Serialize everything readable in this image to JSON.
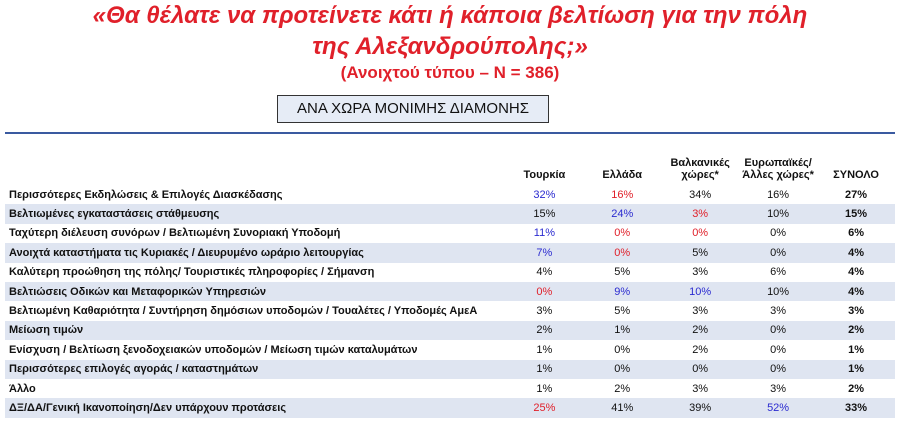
{
  "title": {
    "line1": "«Θα θέλατε να προτείνετε κάτι ή κάποια βελτίωση για την πόλη",
    "line2": "της Αλεξανδρούπολης;»",
    "subtitle": "(Ανοιχτού τύπου – Ν = 386)"
  },
  "section_label": "ΑΝΑ ΧΩΡΑ ΜΟΝΙΜΗΣ ΔΙΑΜΟΝΗΣ",
  "table": {
    "headers": [
      "Τουρκία",
      "Ελλάδα",
      "Βαλκανικές χώρες*",
      "Ευρωπαϊκές/ Άλλες χώρες*",
      "ΣΥΝΟΛΟ"
    ],
    "rows": [
      {
        "label": "Περισσότερες Εκδηλώσεις & Επιλογές Διασκέδασης",
        "cells": [
          {
            "text": "32%",
            "color": "#2b2bd0"
          },
          {
            "text": "16%",
            "color": "#e0202a"
          },
          "34%",
          "16%",
          "27%"
        ]
      },
      {
        "label": "Βελτιωμένες εγκαταστάσεις στάθμευσης",
        "cells": [
          "15%",
          {
            "text": "24%",
            "color": "#2b2bd0"
          },
          {
            "text": "3%",
            "color": "#e0202a"
          },
          "10%",
          "15%"
        ]
      },
      {
        "label": "Ταχύτερη διέλευση συνόρων / Βελτιωμένη Συνοριακή Υποδομή",
        "cells": [
          {
            "text": "11%",
            "color": "#2b2bd0"
          },
          {
            "text": "0%",
            "color": "#e0202a"
          },
          {
            "text": "0%",
            "color": "#e0202a"
          },
          "0%",
          "6%"
        ]
      },
      {
        "label": "Ανοιχτά καταστήματα τις Κυριακές / Διευρυμένο ωράριο λειτουργίας",
        "cells": [
          {
            "text": "7%",
            "color": "#2b2bd0"
          },
          {
            "text": "0%",
            "color": "#e0202a"
          },
          "5%",
          "0%",
          "4%"
        ]
      },
      {
        "label": "Καλύτερη προώθηση της πόλης/ Τουριστικές πληροφορίες / Σήμανση",
        "cells": [
          "4%",
          "5%",
          "3%",
          "6%",
          "4%"
        ]
      },
      {
        "label": "Βελτιώσεις Οδικών και Μεταφορικών Υπηρεσιών",
        "cells": [
          {
            "text": "0%",
            "color": "#e0202a"
          },
          {
            "text": "9%",
            "color": "#2b2bd0"
          },
          {
            "text": "10%",
            "color": "#2b2bd0"
          },
          "10%",
          "4%"
        ]
      },
      {
        "label": "Βελτιωμένη Καθαριότητα / Συντήρηση δημόσιων υποδομών / Τουαλέτες / Υποδομές ΑμεΑ",
        "cells": [
          "3%",
          "5%",
          "3%",
          "3%",
          "3%"
        ]
      },
      {
        "label": "Μείωση τιμών",
        "cells": [
          "2%",
          "1%",
          "2%",
          "0%",
          "2%"
        ]
      },
      {
        "label": "Ενίσχυση / Βελτίωση ξενοδοχειακών υποδομών / Μείωση τιμών καταλυμάτων",
        "cells": [
          "1%",
          "0%",
          "2%",
          "0%",
          "1%"
        ]
      },
      {
        "label": "Περισσότερες επιλογές αγοράς / καταστημάτων",
        "cells": [
          "1%",
          "0%",
          "0%",
          "0%",
          "1%"
        ]
      },
      {
        "label": "Άλλο",
        "cells": [
          "1%",
          "2%",
          "3%",
          "3%",
          "2%"
        ]
      },
      {
        "label": "ΔΞ/ΔΑ/Γενική Ικανοποίηση/Δεν υπάρχουν προτάσεις",
        "cells": [
          {
            "text": "25%",
            "color": "#e0202a"
          },
          "41%",
          "39%",
          {
            "text": "52%",
            "color": "#2b2bd0"
          },
          "33%"
        ]
      }
    ]
  }
}
